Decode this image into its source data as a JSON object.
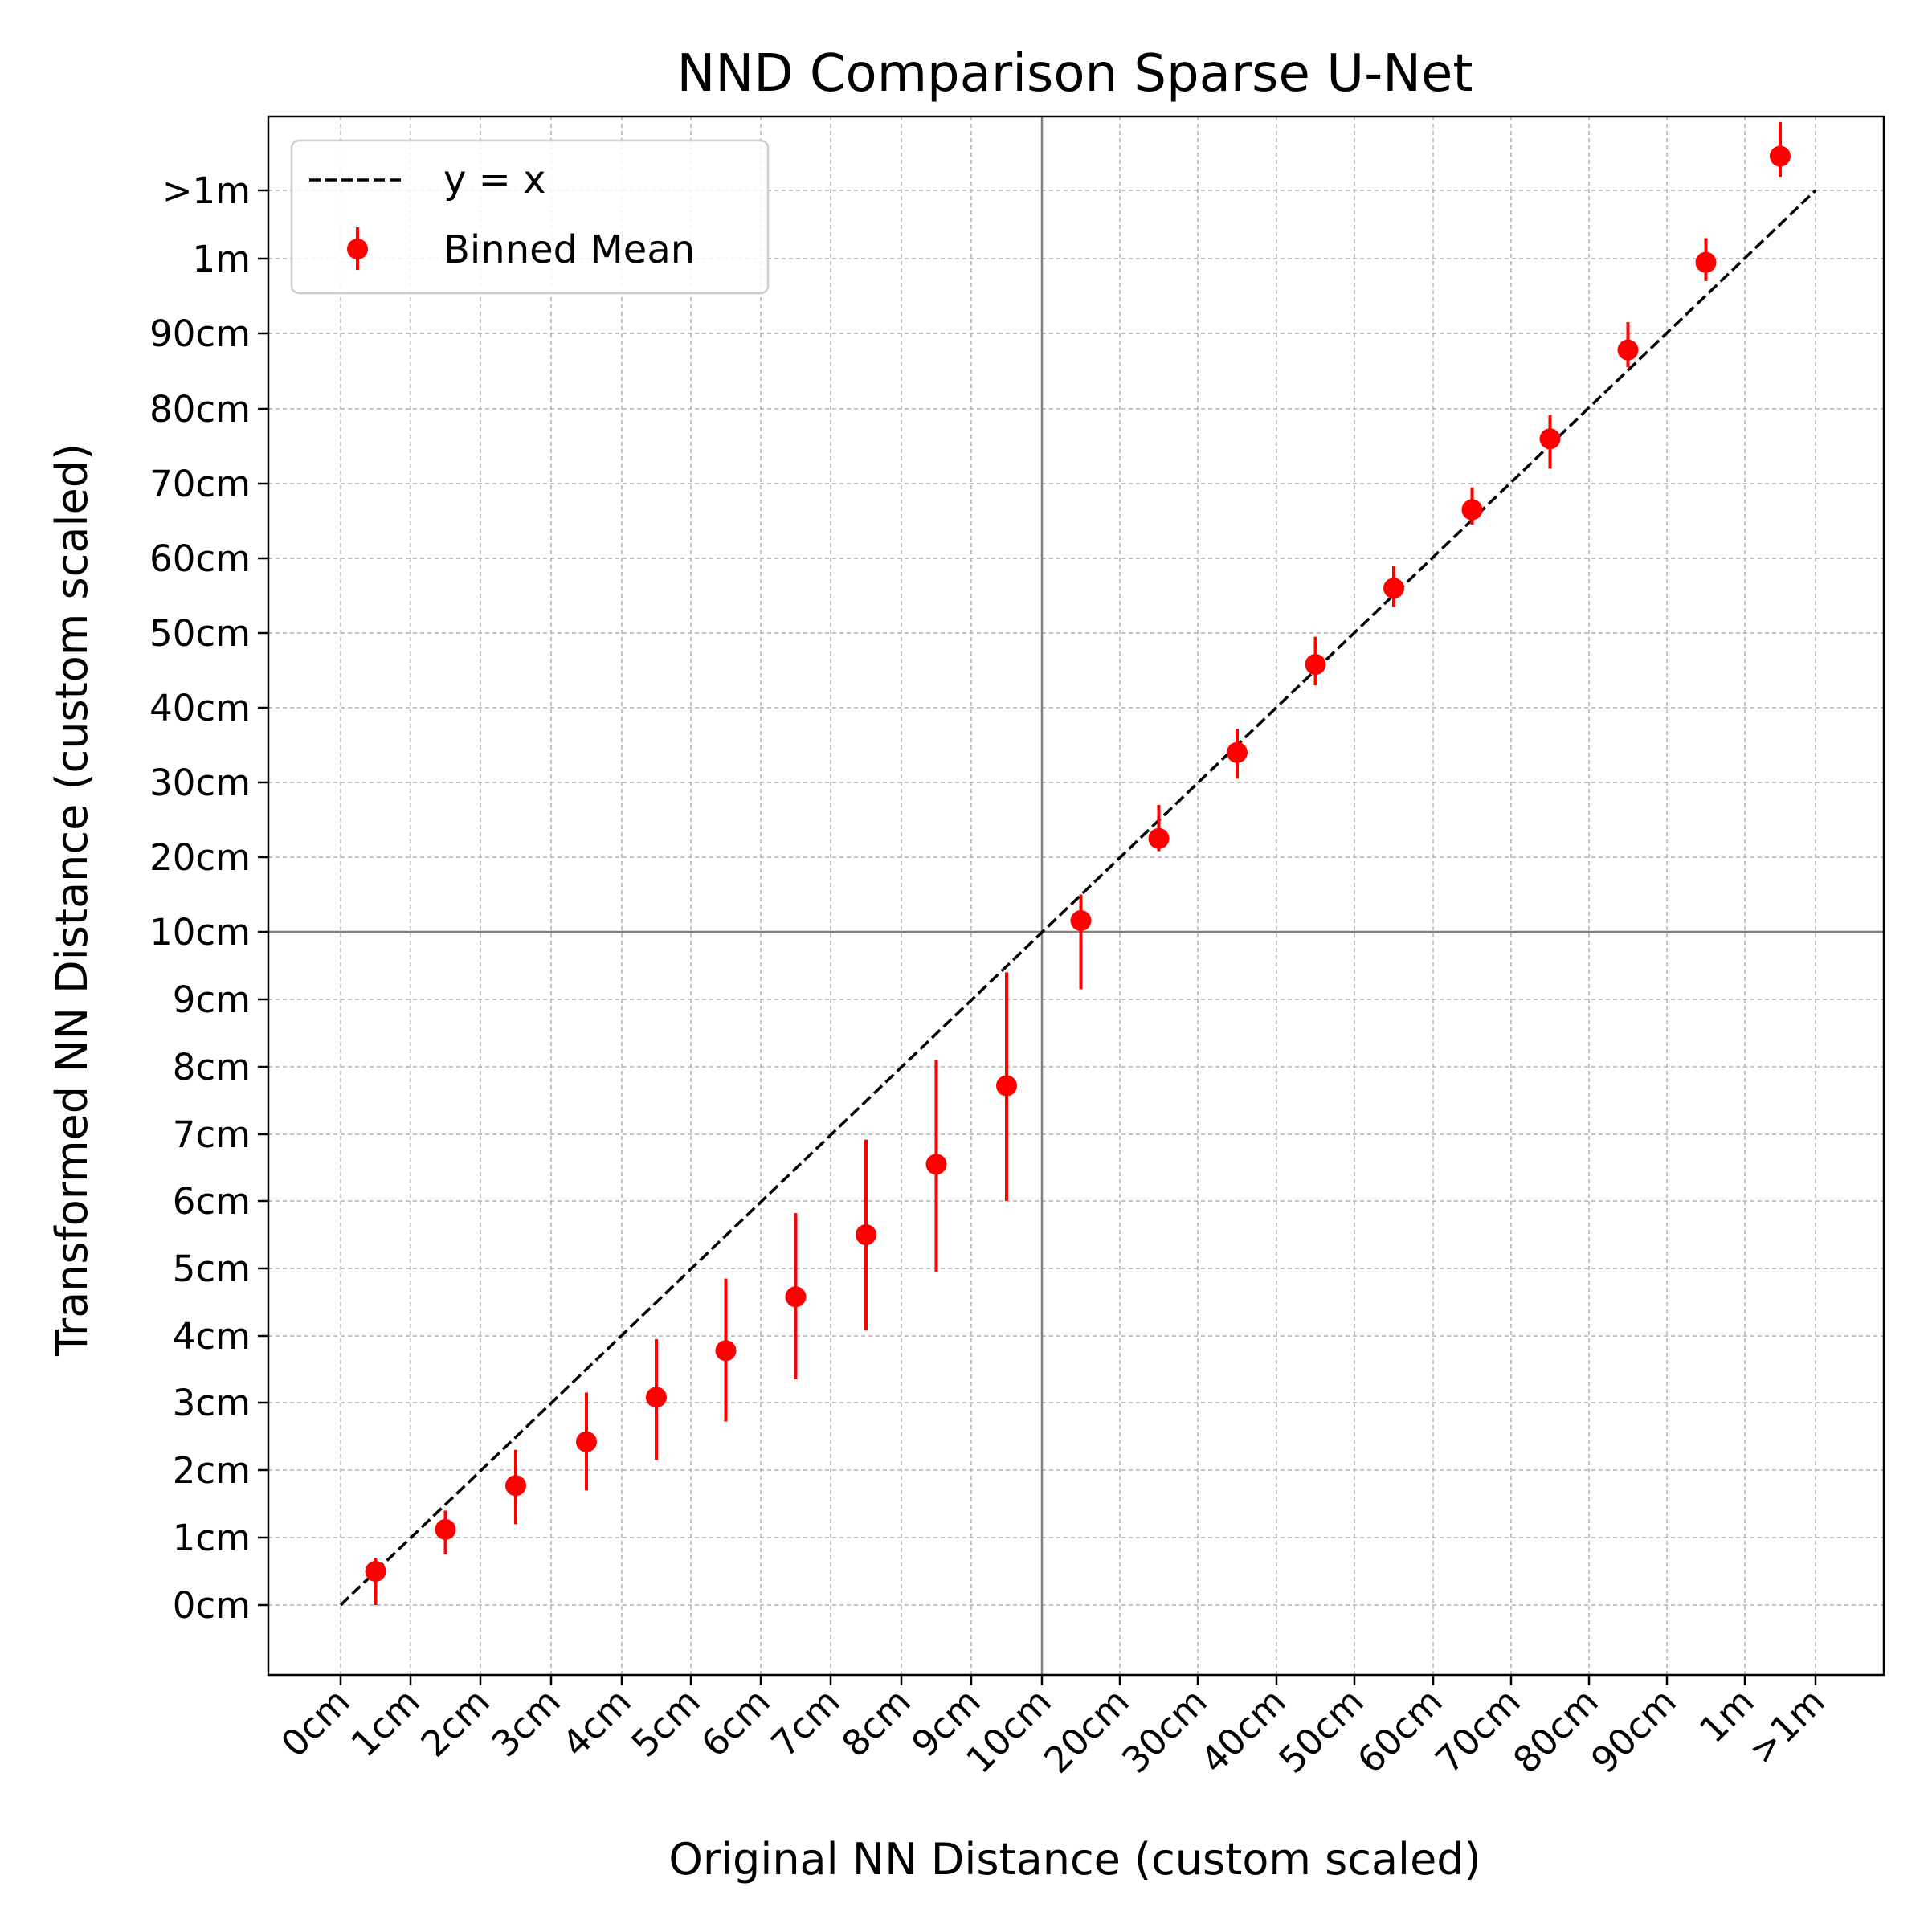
{
  "chart_data": {
    "type": "scatter",
    "title": "NND Comparison Sparse U-Net",
    "xlabel": "Original NN Distance (custom scaled)",
    "ylabel": "Transformed NN Distance (custom scaled)",
    "x_tick_labels": [
      "0cm",
      "1cm",
      "2cm",
      "3cm",
      "4cm",
      "5cm",
      "6cm",
      "7cm",
      "8cm",
      "9cm",
      "10cm",
      "20cm",
      "30cm",
      "40cm",
      "50cm",
      "60cm",
      "70cm",
      "80cm",
      "90cm",
      "1m",
      ">1m"
    ],
    "y_tick_labels": [
      "0cm",
      "1cm",
      "2cm",
      "3cm",
      "4cm",
      "5cm",
      "6cm",
      "7cm",
      "8cm",
      "9cm",
      "10cm",
      "20cm",
      "30cm",
      "40cm",
      "50cm",
      "60cm",
      "70cm",
      "80cm",
      "90cm",
      "1m",
      ">1m"
    ],
    "scale": "custom piecewise: 1cm steps from 0cm to 10cm, 10cm steps from 10cm to 1m, then >1m",
    "grid": true,
    "reference_lines": {
      "x": "10cm",
      "y": "10cm"
    },
    "legend": {
      "position": "top-left",
      "entries": [
        "y = x",
        "Binned Mean"
      ]
    },
    "series": [
      {
        "name": "y = x",
        "style": "dashed",
        "color": "#000000",
        "x": [
          0,
          20
        ],
        "y": [
          0,
          20
        ]
      },
      {
        "name": "Binned Mean",
        "style": "errorbar",
        "color": "#ff0000",
        "x": [
          0.5,
          1.5,
          2.5,
          3.5,
          4.5,
          5.5,
          6.5,
          7.5,
          8.5,
          9.5,
          10.5,
          11.5,
          12.5,
          13.5,
          14.5,
          15.5,
          16.5,
          17.5,
          18.5,
          19.5
        ],
        "y": [
          0.5,
          1.12,
          1.77,
          2.42,
          3.08,
          3.78,
          4.58,
          5.5,
          6.55,
          7.72,
          10.15,
          11.25,
          12.4,
          13.58,
          14.6,
          15.65,
          16.6,
          17.78,
          18.95,
          20.5
        ],
        "y_low": [
          0.0,
          0.75,
          1.2,
          1.7,
          2.15,
          2.72,
          3.35,
          4.08,
          4.95,
          6.0,
          9.15,
          11.08,
          12.05,
          13.3,
          14.35,
          15.45,
          16.2,
          17.55,
          18.7,
          20.2
        ],
        "y_high": [
          0.7,
          1.4,
          2.3,
          3.15,
          3.95,
          4.85,
          5.82,
          6.92,
          8.1,
          9.4,
          10.5,
          11.7,
          12.72,
          13.95,
          14.9,
          15.95,
          16.92,
          18.15,
          19.3,
          21.0
        ]
      }
    ]
  }
}
